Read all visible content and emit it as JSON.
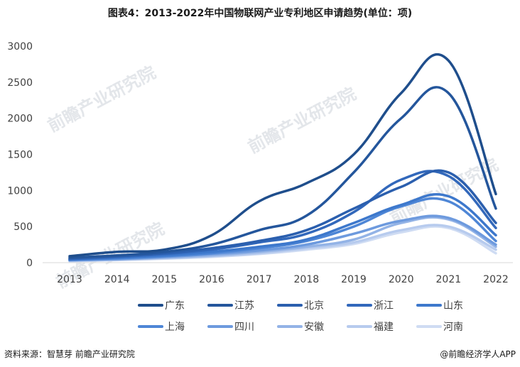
{
  "chart_data": {
    "type": "line",
    "title": "图表4：2013-2022年中国物联网产业专利地区申请趋势(单位：项)",
    "categories": [
      "2013",
      "2014",
      "2015",
      "2016",
      "2017",
      "2018",
      "2019",
      "2020",
      "2021",
      "2022"
    ],
    "ylim": [
      0,
      3000
    ],
    "yticks": [
      0,
      500,
      1000,
      1500,
      2000,
      2500,
      3000
    ],
    "grid": false,
    "legend_position": "bottom",
    "series": [
      {
        "name": "广东",
        "color": "#1f4e8c",
        "values": [
          90,
          150,
          180,
          380,
          850,
          1100,
          1500,
          2350,
          2800,
          950
        ]
      },
      {
        "name": "江苏",
        "color": "#24569c",
        "values": [
          70,
          100,
          150,
          250,
          450,
          650,
          1250,
          2000,
          2350,
          750
        ]
      },
      {
        "name": "北京",
        "color": "#2b5fae",
        "values": [
          60,
          90,
          130,
          200,
          300,
          450,
          750,
          1050,
          1250,
          550
        ]
      },
      {
        "name": "浙江",
        "color": "#3268bb",
        "values": [
          50,
          80,
          120,
          180,
          280,
          400,
          700,
          1150,
          1200,
          480
        ]
      },
      {
        "name": "山东",
        "color": "#3d78cc",
        "values": [
          40,
          70,
          100,
          150,
          220,
          320,
          550,
          800,
          920,
          380
        ]
      },
      {
        "name": "上海",
        "color": "#4e86d6",
        "values": [
          40,
          60,
          90,
          130,
          200,
          300,
          500,
          780,
          850,
          300
        ]
      },
      {
        "name": "四川",
        "color": "#6d9ade",
        "values": [
          35,
          50,
          80,
          120,
          170,
          250,
          400,
          580,
          620,
          250
        ]
      },
      {
        "name": "安徽",
        "color": "#93b3e6",
        "values": [
          30,
          45,
          70,
          100,
          150,
          220,
          320,
          550,
          600,
          220
        ]
      },
      {
        "name": "福建",
        "color": "#b7cbee",
        "values": [
          25,
          40,
          60,
          90,
          130,
          200,
          280,
          450,
          500,
          180
        ]
      },
      {
        "name": "河南",
        "color": "#cfdcf3",
        "values": [
          20,
          35,
          55,
          80,
          120,
          180,
          260,
          420,
          480,
          130
        ]
      }
    ]
  },
  "footer": {
    "source": "资料来源：智慧芽 前瞻产业研究院",
    "brand": "@前瞻经济学人APP"
  },
  "watermark": {
    "text": "前瞻产业研究院"
  }
}
